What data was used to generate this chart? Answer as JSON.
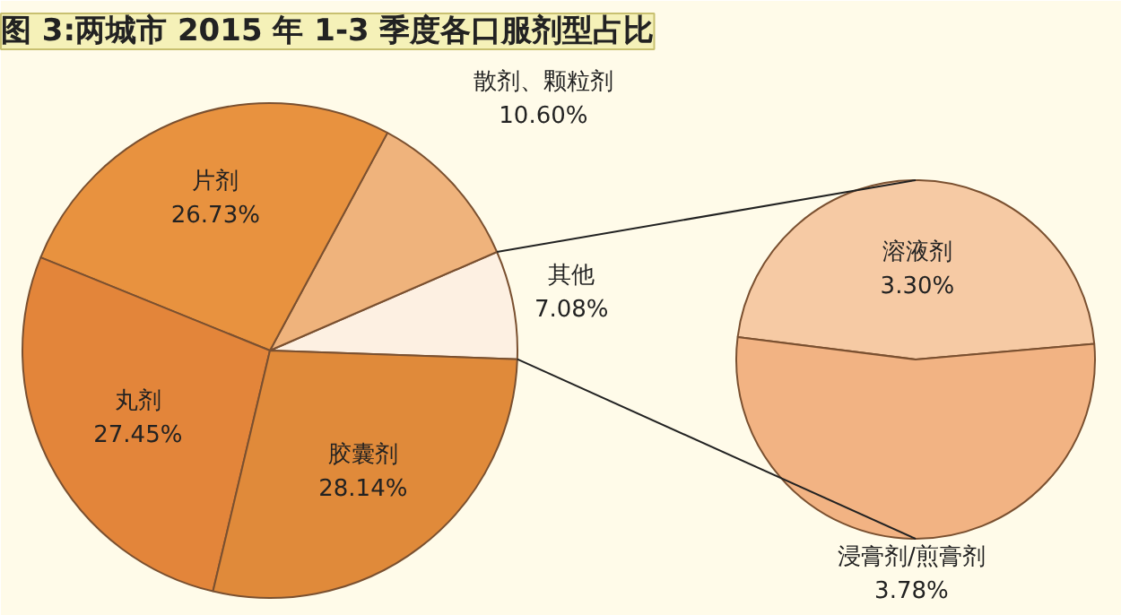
{
  "chart_data": [
    {
      "type": "pie",
      "title": "图 3:两城市 2015 年 1-3 季度各口服剂型占比",
      "categories": [
        "其他",
        "散剂、颗粒剂",
        "片剂",
        "丸剂",
        "胶囊剂"
      ],
      "values": [
        7.08,
        10.6,
        26.73,
        27.45,
        28.14
      ],
      "colors": [
        "#fdf0e2",
        "#efb37c",
        "#e8923f",
        "#e3853a",
        "#e08a3a"
      ],
      "value_labels": [
        "7.08%",
        "10.60%",
        "26.73%",
        "27.45%",
        "28.14%"
      ]
    },
    {
      "type": "pie",
      "categories": [
        "溶液剂",
        "浸膏剂/煎膏剂"
      ],
      "values": [
        3.3,
        3.78
      ],
      "colors": [
        "#f6caa4",
        "#f2b383"
      ],
      "value_labels": [
        "3.30%",
        "3.78%"
      ]
    }
  ]
}
